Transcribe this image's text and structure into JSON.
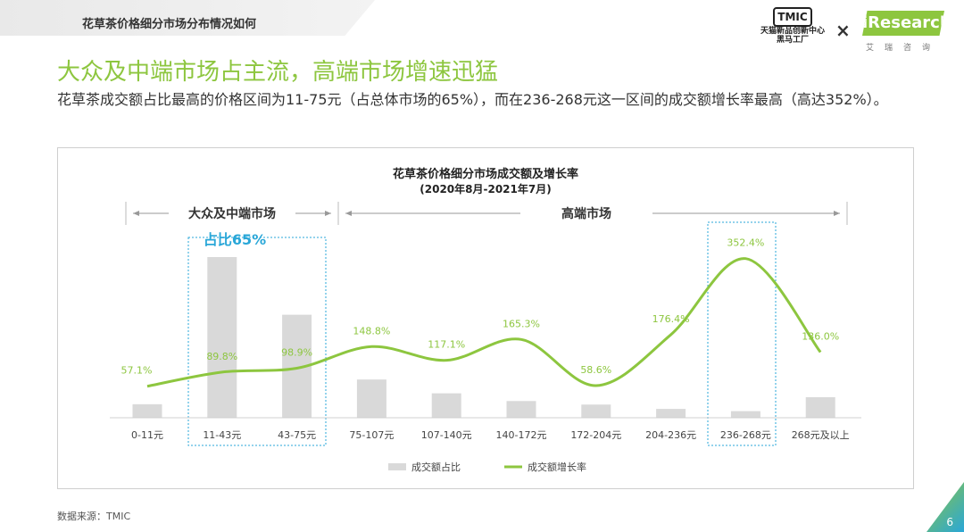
{
  "header": {
    "section_label": "花草茶价格细分市场分布情况如何",
    "headline": "大众及中端市场占主流，高端市场增速迅猛",
    "lead": "花草茶成交额占比最高的价格区间为11-75元（占总体市场的65%），而在236-268元这一区间的成交额增长率最高（高达352%）。"
  },
  "logos": {
    "tmic_mark": "TMIC",
    "tmic_sub1": "天猫新品创新中心",
    "tmic_sub2": "黑马工厂",
    "times": "×",
    "iresearch_mark": "iResearch",
    "iresearch_sub": "艾瑞咨询"
  },
  "chart_data": {
    "type": "bar",
    "title": "花草茶价格细分市场成交额及增长率",
    "subtitle": "(2020年8月-2021年7月)",
    "categories": [
      "0-11元",
      "11-43元",
      "43-75元",
      "75-107元",
      "107-140元",
      "140-172元",
      "172-204元",
      "204-236元",
      "236-268元",
      "268元及以上"
    ],
    "series": [
      {
        "name": "成交额占比",
        "type": "bar",
        "color": "#d9d9d9",
        "values": [
          0.084,
          1.0,
          0.641,
          0.238,
          0.152,
          0.104,
          0.082,
          0.055,
          0.041,
          0.128
        ]
      },
      {
        "name": "成交额增长率",
        "type": "line",
        "color": "#8dc63f",
        "values": [
          57.1,
          89.8,
          98.9,
          148.8,
          117.1,
          165.3,
          58.6,
          176.4,
          352.4,
          136.0
        ],
        "labels": [
          "57.1%",
          "89.8%",
          "98.9%",
          "148.8%",
          "117.1%",
          "165.3%",
          "58.6%",
          "176.4%",
          "352.4%",
          "136.0%"
        ]
      }
    ],
    "segments": [
      {
        "label": "大众及中端市场"
      },
      {
        "label": "高端市场"
      }
    ],
    "highlight_label": "占比65%",
    "legend_position": "bottom",
    "grid": false
  },
  "footer": {
    "source": "数据来源：TMIC",
    "page": "6"
  },
  "colors": {
    "accent": "#8dc63f",
    "bar": "#d9d9d9",
    "highlight": "#2aa7d8"
  }
}
